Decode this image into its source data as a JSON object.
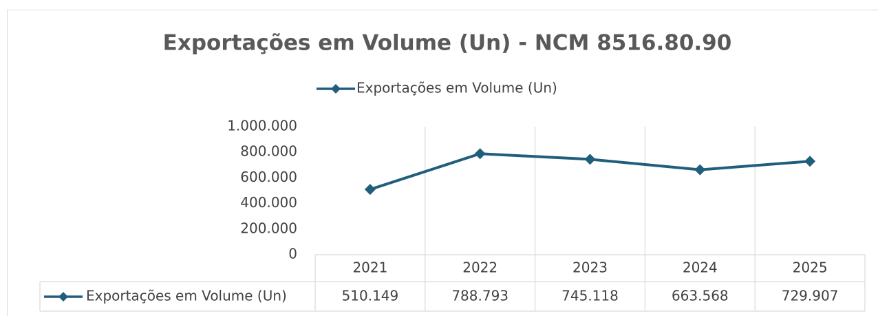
{
  "chart_data": {
    "type": "line",
    "title": "Exportações em Volume (Un) - NCM 8516.80.90",
    "categories": [
      "2021",
      "2022",
      "2023",
      "2024",
      "2025"
    ],
    "series": [
      {
        "name": "Exportações em Volume (Un)",
        "color": "#205e7c",
        "values": [
          510149,
          788793,
          745118,
          663568,
          729907
        ],
        "value_labels": [
          "510.149",
          "788.793",
          "745.118",
          "663.568",
          "729.907"
        ]
      }
    ],
    "ylim": [
      0,
      1000000
    ],
    "yticks": [
      0,
      {
        "value": 200000,
        "label": "200.000"
      },
      {
        "value": 400000,
        "label": "400.000"
      },
      {
        "value": 600000,
        "label": "600.000"
      },
      {
        "value": 800000,
        "label": "800.000"
      },
      {
        "value": 1000000,
        "label": "1.000.000"
      }
    ],
    "legend": "top"
  }
}
